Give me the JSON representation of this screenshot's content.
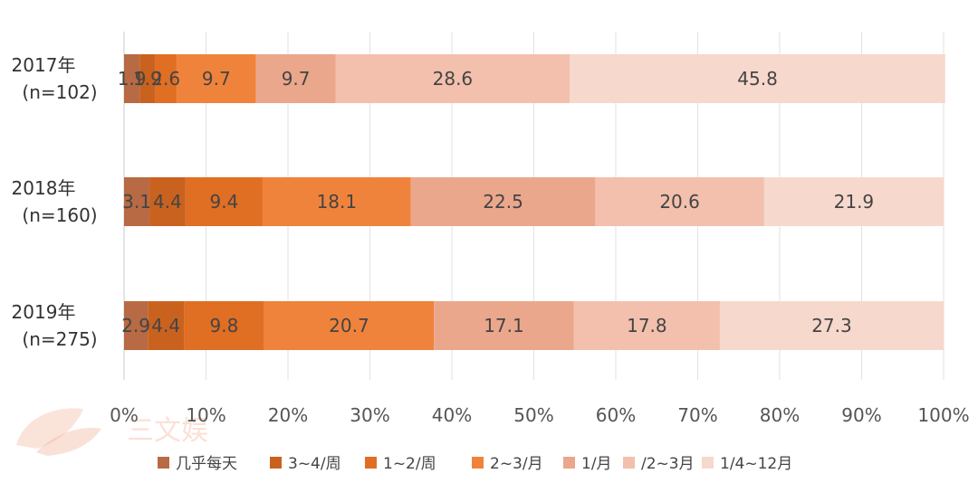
{
  "chart_data": {
    "type": "bar",
    "orientation": "horizontal",
    "stacked": true,
    "percent": true,
    "categories": [
      [
        "2017年",
        "(n=102)"
      ],
      [
        "2018年",
        "(n=160)"
      ],
      [
        "2019年",
        "(n=275)"
      ]
    ],
    "series": [
      {
        "name": "几乎每天",
        "color": "#b76a43",
        "values": [
          1.9,
          3.1,
          2.9
        ]
      },
      {
        "name": "3~4/周",
        "color": "#c9621f",
        "values": [
          1.9,
          4.4,
          4.4
        ]
      },
      {
        "name": "1~2/周",
        "color": "#e06e23",
        "values": [
          2.6,
          9.4,
          9.8
        ]
      },
      {
        "name": "2~3/月",
        "color": "#f0833b",
        "values": [
          9.7,
          18.1,
          20.7
        ]
      },
      {
        "name": "1/月",
        "color": "#eba78b",
        "values": [
          9.7,
          22.5,
          17.1
        ]
      },
      {
        "name": "/2~3月",
        "color": "#f2c0ad",
        "values": [
          28.6,
          20.6,
          17.8
        ]
      },
      {
        "name": "1/4~12月",
        "color": "#f7d8cc",
        "values": [
          45.8,
          21.9,
          27.3
        ]
      }
    ],
    "data_labels": [
      [
        "1.9",
        "1.9",
        "2.6",
        "9.7",
        "9.7",
        "28.6",
        "45.8"
      ],
      [
        "3.1",
        "4.4",
        "9.4",
        "18.1",
        "22.5",
        "20.6",
        "21.9"
      ],
      [
        "2.9",
        "4.4",
        "9.8",
        "20.7",
        "17.1",
        "17.8",
        "27.3"
      ]
    ],
    "xlim": [
      0,
      100
    ],
    "x_ticks": [
      "0%",
      "10%",
      "20%",
      "30%",
      "40%",
      "50%",
      "60%",
      "70%",
      "80%",
      "90%",
      "100%"
    ],
    "grid": "vertical",
    "legend_position": "bottom"
  },
  "watermark": {
    "text": "三文娱"
  }
}
